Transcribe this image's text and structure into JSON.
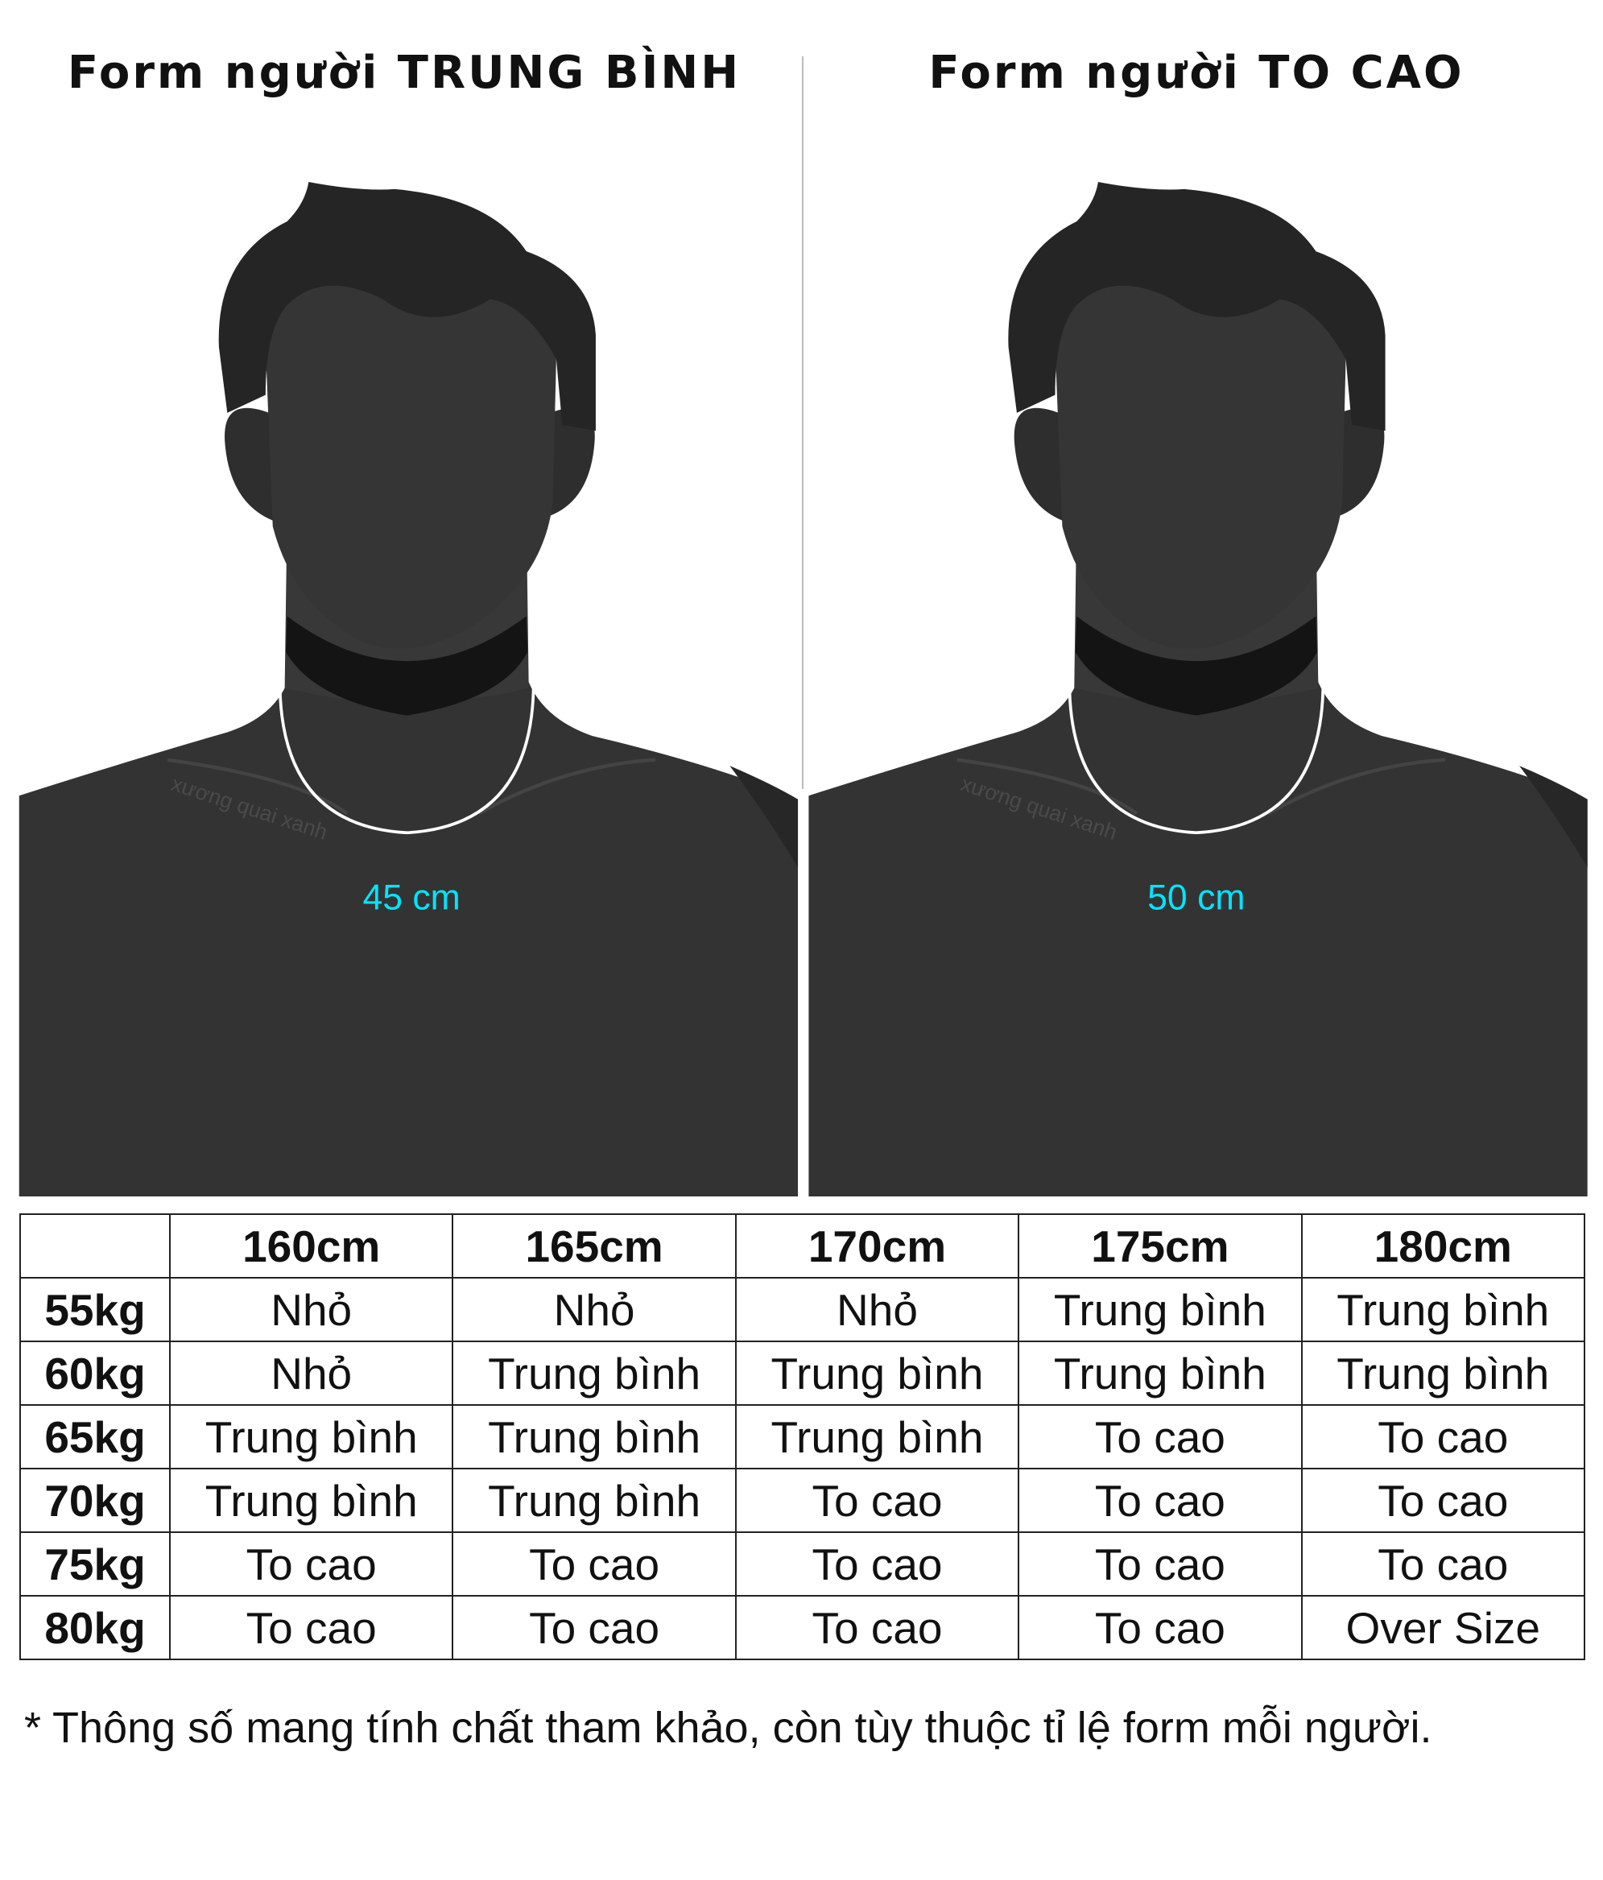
{
  "left_panel": {
    "title": "Form người TRUNG BÌNH",
    "neck_size": "45 cm",
    "watermark": "xương quai xanh"
  },
  "right_panel": {
    "title": "Form người TO CAO",
    "neck_size": "50 cm",
    "watermark": "xương quai xanh"
  },
  "colors": {
    "measurement_text": "#00e5ff",
    "silhouette": "#333333",
    "neck_circle": "#ffffff"
  },
  "table": {
    "columns": [
      "",
      "160cm",
      "165cm",
      "170cm",
      "175cm",
      "180cm"
    ],
    "rows": [
      {
        "weight": "55kg",
        "cells": [
          "Nhỏ",
          "Nhỏ",
          "Nhỏ",
          "Trung bình",
          "Trung bình"
        ]
      },
      {
        "weight": "60kg",
        "cells": [
          "Nhỏ",
          "Trung bình",
          "Trung bình",
          "Trung bình",
          "Trung bình"
        ]
      },
      {
        "weight": "65kg",
        "cells": [
          "Trung bình",
          "Trung bình",
          "Trung bình",
          "To cao",
          "To cao"
        ]
      },
      {
        "weight": "70kg",
        "cells": [
          "Trung bình",
          "Trung bình",
          "To cao",
          "To cao",
          "To cao"
        ]
      },
      {
        "weight": "75kg",
        "cells": [
          "To cao",
          "To cao",
          "To cao",
          "To cao",
          "To cao"
        ]
      },
      {
        "weight": "80kg",
        "cells": [
          "To cao",
          "To cao",
          "To cao",
          "To cao",
          "Over Size"
        ]
      }
    ]
  },
  "footnote": "* Thông số mang tính chất tham khảo, còn tùy thuộc tỉ lệ form mỗi người."
}
